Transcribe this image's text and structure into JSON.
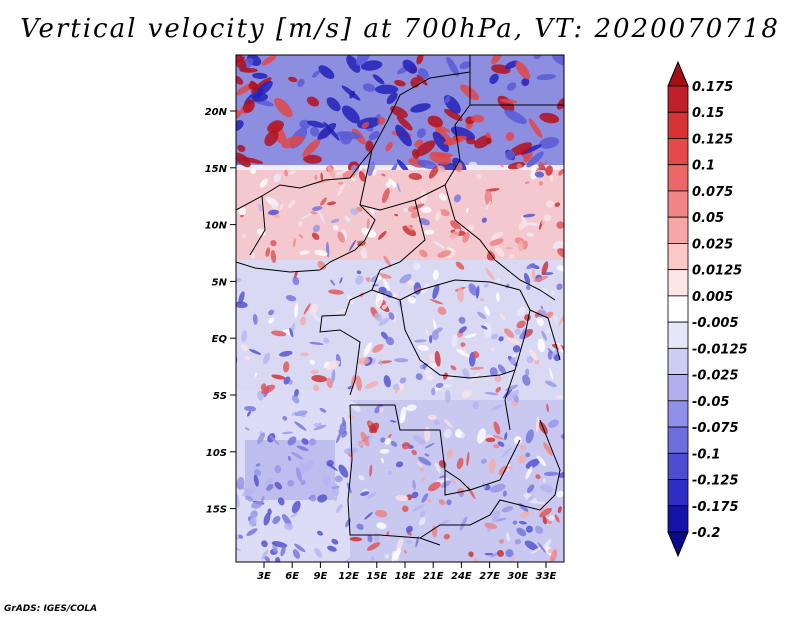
{
  "title": "Vertical velocity [m/s] at 700hPa, VT: 2020070718",
  "credit": "GrADS: IGES/COLA",
  "lat_ticks": [
    "20N",
    "15N",
    "10N",
    "5N",
    "EQ",
    "5S",
    "10S",
    "15S"
  ],
  "lon_ticks": [
    "3E",
    "6E",
    "9E",
    "12E",
    "15E",
    "18E",
    "21E",
    "24E",
    "27E",
    "30E",
    "33E"
  ],
  "colorbar": {
    "labels": [
      "0.175",
      "0.15",
      "0.125",
      "0.1",
      "0.075",
      "0.05",
      "0.025",
      "0.0125",
      "0.005",
      "-0.005",
      "-0.0125",
      "-0.025",
      "-0.05",
      "-0.075",
      "-0.1",
      "-0.125",
      "-0.175",
      "-0.2"
    ],
    "colors": [
      "#a50f15",
      "#c0202a",
      "#d73535",
      "#e34a4a",
      "#ec6767",
      "#f28686",
      "#f7a6a6",
      "#fbc8c8",
      "#fde6e6",
      "#ffffff",
      "#e6e6fb",
      "#cdcdf6",
      "#b0b0f0",
      "#9090e8",
      "#6e6ede",
      "#4d4dd2",
      "#2e2ec4",
      "#1414a8",
      "#0a0a8a"
    ]
  }
}
